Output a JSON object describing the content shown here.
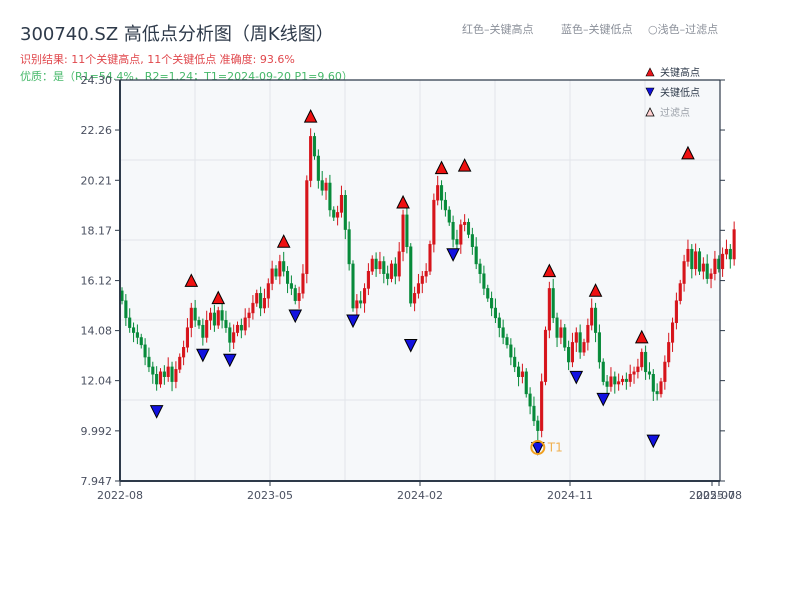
{
  "header": {
    "title": "300740.SZ 高低点分析图（周K线图）",
    "result_line": "识别结果: 11个关键高点, 11个关键低点   准确度: 93.6%",
    "quality_line": "优质：是（R1=54.4%，R2=1.24；T1=2024-09-20 P1=9.60）",
    "hint_red": "红色–关键高点",
    "hint_blue": "蓝色–关键低点",
    "hint_light": "○浅色–过滤点"
  },
  "legend": {
    "items": [
      {
        "label": "关键高点",
        "marker": "triangle-up",
        "color": "#e8141a"
      },
      {
        "label": "关键低点",
        "marker": "triangle-down",
        "color": "#1010d8"
      },
      {
        "label": "过滤点",
        "marker": "triangle-up-light",
        "color": "#ffd0d0"
      }
    ]
  },
  "colors": {
    "up": "#d6141b",
    "down": "#078a3a",
    "high_marker": "#ee1111",
    "low_marker": "#1212e0",
    "t1_ring": "#f0a020",
    "t1_text": "#f0b050",
    "plot_bg": "#f6f8fa",
    "grid": "#e2e5ea",
    "axis": "#2e3a4a"
  },
  "chart_data": {
    "type": "candlestick",
    "title": "300740.SZ 高低点分析图（周K线图）",
    "xlabel": "",
    "ylabel": "",
    "ylim": [
      7.947,
      24.3
    ],
    "y_ticks": [
      "24.30",
      "22.26",
      "20.21",
      "18.17",
      "16.12",
      "14.08",
      "12.04",
      "9.992",
      "7.947"
    ],
    "y_tick_values": [
      24.3,
      22.26,
      20.21,
      18.17,
      16.12,
      14.08,
      12.04,
      9.992,
      7.947
    ],
    "x_ticks": [
      {
        "label": "2022-08",
        "week": 0
      },
      {
        "label": "2023-05",
        "week": 39
      },
      {
        "label": "2024-02",
        "week": 78
      },
      {
        "label": "2024-11",
        "week": 117
      },
      {
        "label": "2025-07",
        "week": 154
      },
      {
        "label": "2025-08",
        "week": 156
      }
    ],
    "grid": true,
    "legend_position": "upper right",
    "annotation": {
      "label": "T1",
      "date": "2024-09-20",
      "price": 9.6
    },
    "key_highs": [
      {
        "week": 18,
        "price": 15.8
      },
      {
        "week": 25,
        "price": 15.1
      },
      {
        "week": 42,
        "price": 17.4
      },
      {
        "week": 49,
        "price": 22.5
      },
      {
        "week": 73,
        "price": 19.0
      },
      {
        "week": 83,
        "price": 20.4
      },
      {
        "week": 89,
        "price": 20.5
      },
      {
        "week": 111,
        "price": 16.2
      },
      {
        "week": 123,
        "price": 15.4
      },
      {
        "week": 135,
        "price": 13.5
      },
      {
        "week": 147,
        "price": 21.0
      }
    ],
    "key_lows": [
      {
        "week": 9,
        "price": 11.1
      },
      {
        "week": 21,
        "price": 13.4
      },
      {
        "week": 28,
        "price": 13.2
      },
      {
        "week": 45,
        "price": 15.0
      },
      {
        "week": 60,
        "price": 14.8
      },
      {
        "week": 75,
        "price": 13.8
      },
      {
        "week": 86,
        "price": 17.5
      },
      {
        "week": 108,
        "price": 9.6
      },
      {
        "week": 118,
        "price": 12.5
      },
      {
        "week": 125,
        "price": 11.6
      },
      {
        "week": 138,
        "price": 9.9
      }
    ],
    "closes": [
      15.3,
      14.6,
      14.2,
      14.0,
      13.8,
      13.5,
      13.0,
      12.6,
      12.3,
      11.9,
      12.4,
      12.2,
      12.6,
      12.0,
      12.5,
      13.0,
      13.4,
      14.2,
      15.0,
      14.5,
      14.3,
      13.8,
      14.5,
      14.8,
      14.3,
      14.9,
      14.5,
      14.2,
      13.6,
      14.0,
      14.3,
      14.1,
      14.6,
      14.8,
      15.2,
      15.6,
      15.0,
      15.4,
      16.0,
      16.6,
      16.3,
      16.9,
      16.5,
      16.0,
      15.8,
      15.3,
      15.6,
      16.4,
      20.2,
      22.0,
      21.2,
      20.2,
      19.8,
      20.1,
      19.0,
      18.7,
      18.9,
      19.6,
      18.2,
      16.8,
      15.0,
      15.3,
      15.2,
      15.8,
      16.5,
      17.0,
      16.6,
      16.9,
      16.4,
      16.2,
      16.8,
      16.3,
      17.3,
      18.8,
      17.5,
      15.2,
      15.6,
      16.0,
      16.3,
      16.5,
      17.6,
      19.4,
      20.0,
      19.4,
      19.0,
      18.5,
      17.8,
      17.6,
      18.4,
      18.5,
      18.0,
      17.5,
      16.8,
      16.4,
      15.8,
      15.4,
      15.0,
      14.6,
      14.2,
      13.8,
      13.5,
      13.0,
      12.6,
      12.2,
      12.4,
      11.5,
      11.0,
      10.4,
      10.0,
      12.0,
      14.1,
      15.8,
      14.6,
      13.8,
      14.2,
      13.4,
      12.8,
      13.6,
      14.0,
      13.2,
      13.6,
      14.3,
      15.0,
      14.0,
      12.8,
      12.0,
      11.8,
      12.2,
      11.9,
      12.0,
      12.1,
      12.0,
      12.3,
      12.4,
      12.6,
      13.2,
      12.4,
      12.3,
      11.6,
      11.5,
      12.0,
      12.8,
      13.6,
      14.4,
      15.3,
      16.0,
      16.9,
      17.4,
      16.6,
      17.3,
      16.5,
      16.8,
      16.2,
      16.4,
      17.0,
      16.6,
      17.2,
      17.4,
      17.0,
      18.2
    ]
  }
}
